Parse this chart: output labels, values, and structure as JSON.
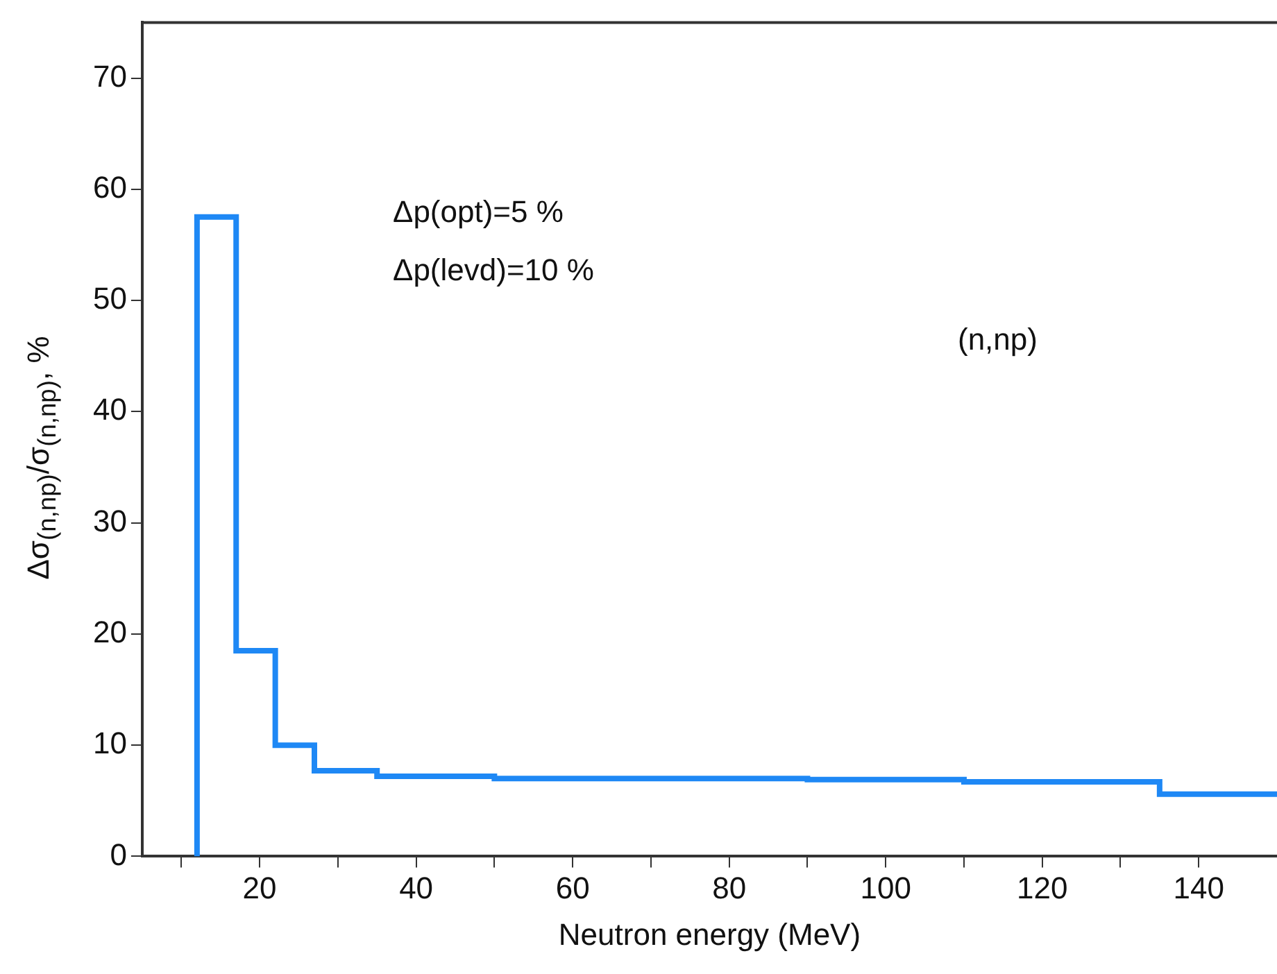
{
  "chart_data": {
    "type": "histogram",
    "xlabel": "Neutron energy (MeV)",
    "ylabel": "Δσ$_{(n,np)}$/σ$_{(n,np)}$, %",
    "annotations": [
      "Δp(opt)=5 %",
      "Δp(levd)=10 %",
      "(n,np)"
    ],
    "bins": [
      12,
      17,
      22,
      27,
      35,
      50,
      90,
      110,
      135,
      150
    ],
    "values": [
      57.5,
      18.5,
      10,
      7.7,
      7.2,
      7.0,
      6.9,
      6.7,
      5.6
    ],
    "color": "#1e88f5",
    "xlim": [
      5,
      150
    ],
    "xticks": [
      {
        "value": 10,
        "label": null
      },
      20,
      {
        "value": 30,
        "label": null
      },
      40,
      {
        "value": 50,
        "label": null
      },
      60,
      {
        "value": 70,
        "label": null
      },
      80,
      {
        "value": 90,
        "label": null
      },
      100,
      {
        "value": 110,
        "label": null
      },
      120,
      {
        "value": 130,
        "label": null
      },
      140
    ],
    "ylim": [
      0,
      75
    ],
    "yticks": [
      0,
      10,
      20,
      30,
      40,
      50,
      60,
      70
    ],
    "grid": false,
    "legend": false
  }
}
